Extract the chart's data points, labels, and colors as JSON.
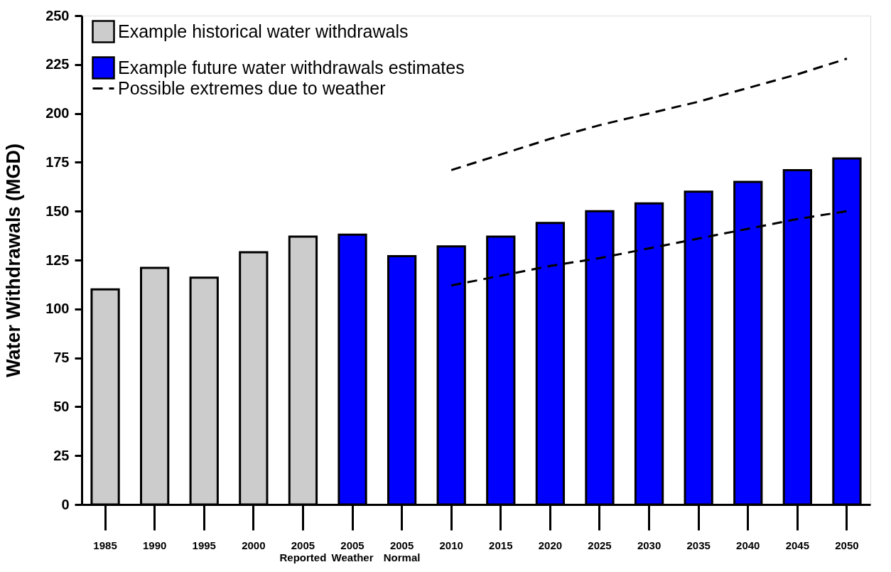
{
  "chart_data": {
    "type": "bar",
    "ylabel": "Water Withdrawals (MGD)",
    "categories": [
      "1985",
      "1990",
      "1995",
      "2000",
      "2005\nReported",
      "2005\nWeather",
      "2005\nNormal",
      "2010",
      "2015",
      "2020",
      "2025",
      "2030",
      "2035",
      "2040",
      "2045",
      "2050"
    ],
    "series": [
      {
        "name": "Example historical water withdrawals",
        "color": "#cccccc",
        "values": [
          110,
          121,
          116,
          129,
          137,
          null,
          null,
          null,
          null,
          null,
          null,
          null,
          null,
          null,
          null,
          null
        ]
      },
      {
        "name": "Example future water withdrawals estimates",
        "color": "#0000ff",
        "values": [
          null,
          null,
          null,
          null,
          null,
          138,
          127,
          132,
          137,
          144,
          150,
          154,
          160,
          165,
          171,
          177
        ]
      },
      {
        "name": "Possible extremes due to weather",
        "type": "line",
        "line_style": "dashed",
        "color": "#000000",
        "values": [
          null,
          null,
          null,
          null,
          null,
          null,
          null,
          171,
          179,
          187,
          194,
          200,
          206,
          213,
          220,
          228
        ]
      },
      {
        "type": "line",
        "line_style": "dashed",
        "color": "#000000",
        "values": [
          null,
          null,
          null,
          null,
          null,
          null,
          null,
          112,
          117,
          122,
          126,
          131,
          136,
          141,
          146,
          150
        ]
      }
    ],
    "ylim": [
      0,
      250
    ],
    "yticks": [
      0,
      25,
      50,
      75,
      100,
      125,
      150,
      175,
      200,
      225,
      250
    ],
    "grid": false,
    "legend": "top left"
  }
}
